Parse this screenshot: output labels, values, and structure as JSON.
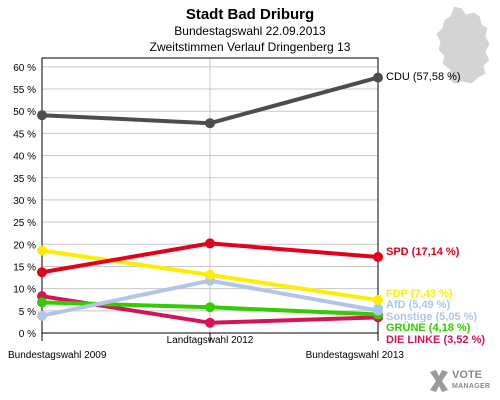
{
  "title": "Stadt Bad Driburg",
  "subtitle1": "Bundestagswahl 22.09.2013",
  "subtitle2": "Zweitstimmen Verlauf Dringenberg 13",
  "logo": {
    "line1": "VOTE",
    "line2": "MANAGER"
  },
  "chart_data": {
    "type": "line",
    "categories": [
      "Bundestagswahl 2009",
      "Landtagswahl 2012",
      "Bundestagswahl 2013"
    ],
    "ylim": [
      0,
      62
    ],
    "yticks": [
      0,
      5,
      10,
      15,
      20,
      25,
      30,
      35,
      40,
      45,
      50,
      55,
      60
    ],
    "ytick_labels": [
      "0 %",
      "5 %",
      "10 %",
      "15 %",
      "20 %",
      "25 %",
      "30 %",
      "35 %",
      "40 %",
      "45 %",
      "50 %",
      "55 %",
      "60 %"
    ],
    "grid": true,
    "legend": "end-of-line labels at right",
    "series": [
      {
        "name": "CDU",
        "label": "CDU (57,58 %)",
        "color": "#4d4d4d",
        "values": [
          49.1,
          47.3,
          57.58
        ]
      },
      {
        "name": "SPD",
        "label": "SPD (17,14 %)",
        "color": "#e2001a",
        "values": [
          13.7,
          20.2,
          17.14
        ]
      },
      {
        "name": "FDP",
        "label": "FDP (7,43 %)",
        "color": "#ffed00",
        "values": [
          18.6,
          13.1,
          7.43
        ]
      },
      {
        "name": "AfD",
        "label": "AfD (5,49 %)",
        "color": "#a8c8e8",
        "values": [
          null,
          null,
          5.49
        ]
      },
      {
        "name": "Sonstige",
        "label": "Sonstige (5,05 %)",
        "color": "#b4c4e8",
        "values": [
          3.9,
          11.8,
          5.05
        ]
      },
      {
        "name": "GRÜNE",
        "label": "GRÜNE (4,18 %)",
        "color": "#33cc00",
        "values": [
          6.9,
          5.8,
          4.18
        ]
      },
      {
        "name": "DIE LINKE",
        "label": "DIE LINKE (3,52 %)",
        "color": "#d4145a",
        "values": [
          8.3,
          2.3,
          3.52
        ]
      }
    ]
  }
}
